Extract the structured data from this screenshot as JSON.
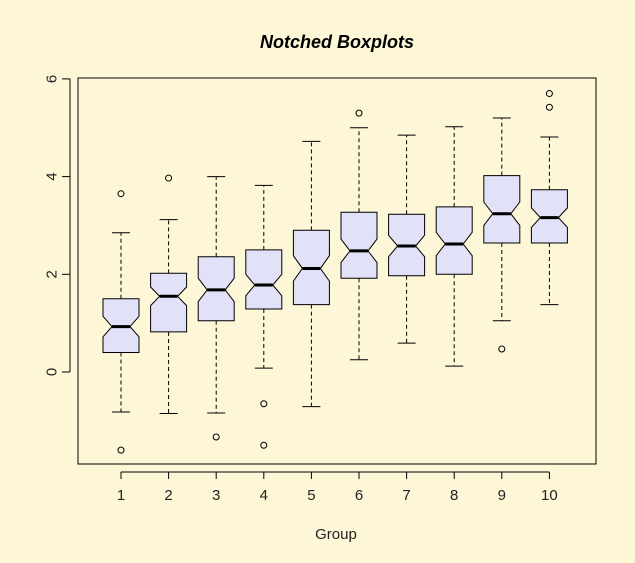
{
  "chart_data": {
    "type": "boxplot",
    "notched": true,
    "title": "Notched Boxplots",
    "xlabel": "Group",
    "ylabel": "",
    "ylim": [
      -1.9,
      6.0
    ],
    "yticks": [
      "0",
      "2",
      "4",
      "6"
    ],
    "grid": false,
    "legend": "none",
    "colors": {
      "box_fill": "#e1e1f8",
      "background": "#fdf7d8",
      "stroke": "#000000"
    },
    "groups": [
      {
        "label": "1",
        "whisker_low": -0.82,
        "q1": 0.4,
        "median": 0.93,
        "q3": 1.5,
        "whisker_high": 2.85,
        "notch_low": 0.72,
        "notch_high": 1.14,
        "outliers": [
          3.65,
          -1.6
        ]
      },
      {
        "label": "2",
        "whisker_low": -0.85,
        "q1": 0.82,
        "median": 1.55,
        "q3": 2.02,
        "whisker_high": 3.12,
        "notch_low": 1.36,
        "notch_high": 1.74,
        "outliers": [
          3.97
        ]
      },
      {
        "label": "3",
        "whisker_low": -0.84,
        "q1": 1.05,
        "median": 1.68,
        "q3": 2.36,
        "whisker_high": 4.0,
        "notch_low": 1.44,
        "notch_high": 1.92,
        "outliers": [
          -1.33
        ]
      },
      {
        "label": "4",
        "whisker_low": 0.08,
        "q1": 1.29,
        "median": 1.78,
        "q3": 2.5,
        "whisker_high": 3.82,
        "notch_low": 1.56,
        "notch_high": 2.0,
        "outliers": [
          -0.65,
          -1.5
        ]
      },
      {
        "label": "5",
        "whisker_low": -0.71,
        "q1": 1.38,
        "median": 2.12,
        "q3": 2.9,
        "whisker_high": 4.72,
        "notch_low": 1.86,
        "notch_high": 2.38,
        "outliers": []
      },
      {
        "label": "6",
        "whisker_low": 0.25,
        "q1": 1.92,
        "median": 2.48,
        "q3": 3.27,
        "whisker_high": 5.0,
        "notch_low": 2.24,
        "notch_high": 2.72,
        "outliers": [
          5.3
        ]
      },
      {
        "label": "7",
        "whisker_low": 0.59,
        "q1": 1.97,
        "median": 2.58,
        "q3": 3.23,
        "whisker_high": 4.85,
        "notch_low": 2.36,
        "notch_high": 2.8,
        "outliers": []
      },
      {
        "label": "8",
        "whisker_low": 0.12,
        "q1": 2.0,
        "median": 2.62,
        "q3": 3.38,
        "whisker_high": 5.02,
        "notch_low": 2.38,
        "notch_high": 2.86,
        "outliers": []
      },
      {
        "label": "9",
        "whisker_low": 1.05,
        "q1": 2.64,
        "median": 3.24,
        "q3": 4.02,
        "whisker_high": 5.2,
        "notch_low": 3.0,
        "notch_high": 3.48,
        "outliers": [
          0.47
        ]
      },
      {
        "label": "10",
        "whisker_low": 1.38,
        "q1": 2.64,
        "median": 3.16,
        "q3": 3.73,
        "whisker_high": 4.81,
        "notch_low": 2.96,
        "notch_high": 3.36,
        "outliers": [
          5.7,
          5.42
        ]
      }
    ]
  }
}
